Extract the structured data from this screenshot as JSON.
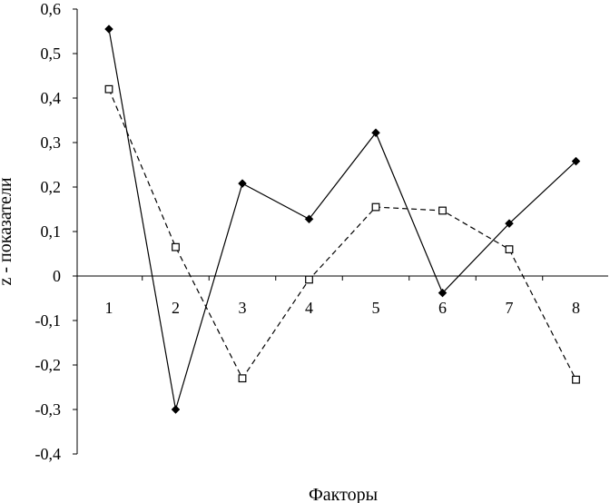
{
  "chart_data": {
    "type": "line",
    "categories": [
      "1",
      "2",
      "3",
      "4",
      "5",
      "6",
      "7",
      "8"
    ],
    "xlabel": "Факторы",
    "ylabel": "z - показатели",
    "ylim": [
      -0.4,
      0.6
    ],
    "yticks": [
      "0,6",
      "0,5",
      "0,4",
      "0,3",
      "0,2",
      "0,1",
      "0",
      "-0,1",
      "-0,2",
      "-0,3",
      "-0,4"
    ],
    "grid": false,
    "legend": "none",
    "series": [
      {
        "style": "solid",
        "marker": "filled-diamond",
        "color": "#000000",
        "values": [
          0.555,
          -0.3,
          0.208,
          0.128,
          0.322,
          -0.038,
          0.118,
          0.258
        ]
      },
      {
        "style": "dashed",
        "marker": "hollow-square",
        "color": "#000000",
        "values": [
          0.42,
          0.065,
          -0.23,
          -0.008,
          0.155,
          0.147,
          0.06,
          -0.233
        ]
      }
    ]
  }
}
